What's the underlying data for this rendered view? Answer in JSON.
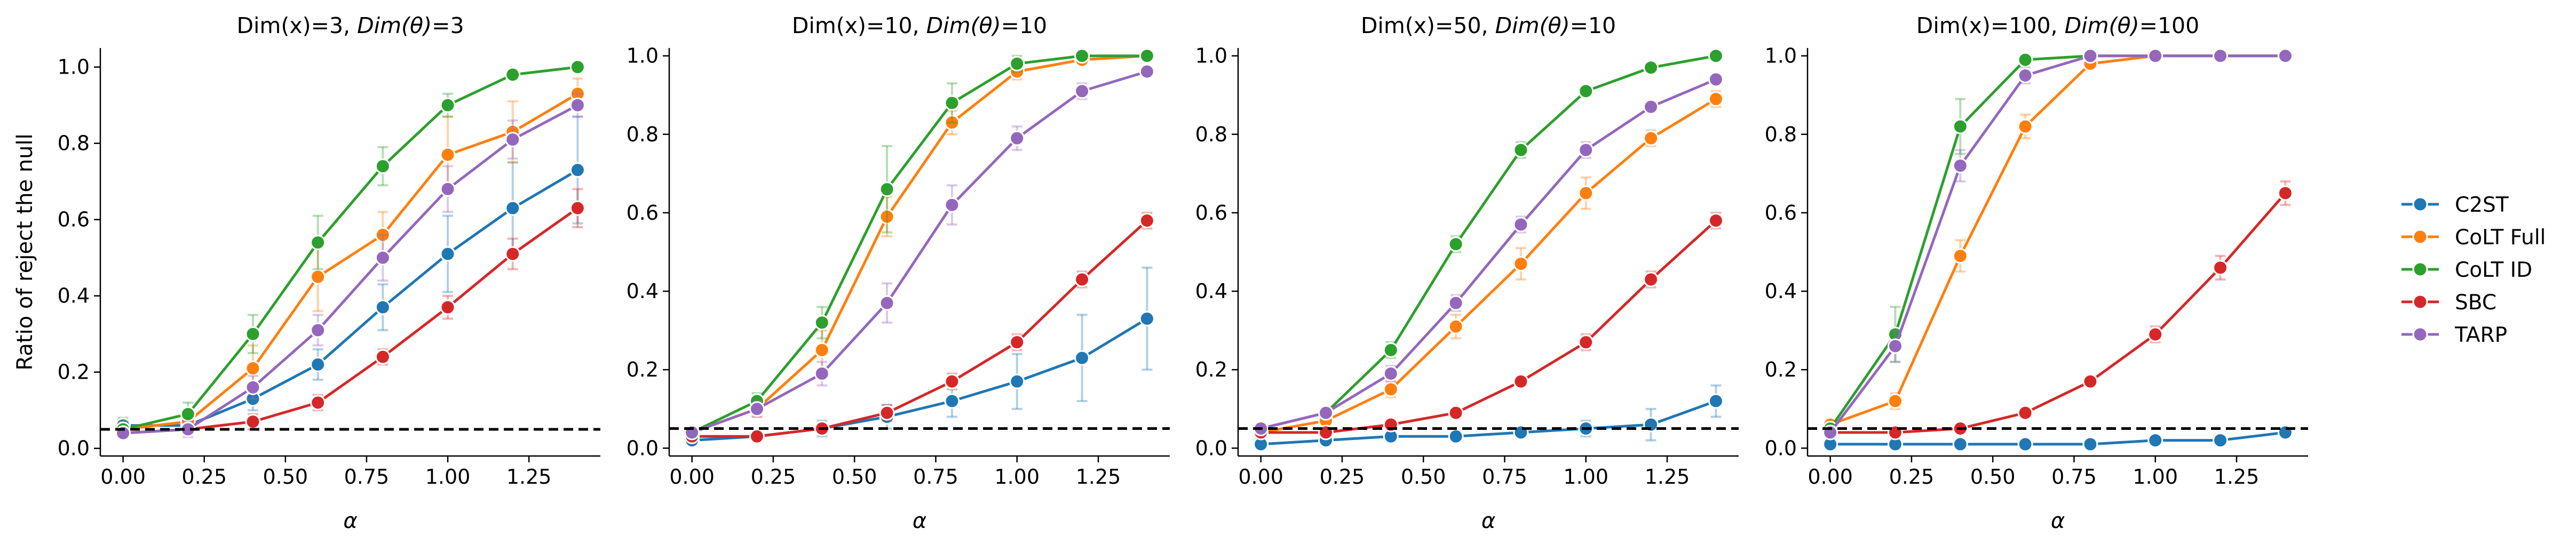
{
  "chart_data": {
    "type": "line",
    "shared": {
      "ylabel": "Ratio of reject the null",
      "xlabel": "α",
      "x": [
        0.0,
        0.2,
        0.4,
        0.6,
        0.8,
        1.0,
        1.2,
        1.4
      ],
      "xticks": [
        0.0,
        0.25,
        0.5,
        0.75,
        1.0,
        1.25
      ],
      "xtick_labels": [
        "0.00",
        "0.25",
        "0.50",
        "0.75",
        "1.00",
        "1.25"
      ],
      "yticks": [
        0.0,
        0.2,
        0.4,
        0.6,
        0.8,
        1.0
      ],
      "ytick_labels": [
        "0.0",
        "0.2",
        "0.4",
        "0.6",
        "0.8",
        "1.0"
      ],
      "null_level": 0.05,
      "legend_position": "right"
    },
    "legend": [
      {
        "name": "C2ST",
        "color": "#1f77b4"
      },
      {
        "name": "CoLT Full",
        "color": "#ff7f0e"
      },
      {
        "name": "CoLT ID",
        "color": "#2ca02c"
      },
      {
        "name": "SBC",
        "color": "#d62728"
      },
      {
        "name": "TARP",
        "color": "#9467bd"
      }
    ],
    "panels": [
      {
        "title_plain": "Dim(x)=3, ",
        "title_italic": "Dim(θ)",
        "title_tail": "=3",
        "xlim": [
          -0.07,
          1.47
        ],
        "ylim": [
          -0.02,
          1.05
        ],
        "series": [
          {
            "name": "C2ST",
            "color": "#1f77b4",
            "values": [
              0.06,
              0.06,
              0.13,
              0.22,
              0.37,
              0.51,
              0.63,
              0.73
            ],
            "err": [
              0.02,
              0.02,
              0.03,
              0.04,
              0.06,
              0.1,
              0.12,
              0.14
            ]
          },
          {
            "name": "CoLT Full",
            "color": "#ff7f0e",
            "values": [
              0.05,
              0.07,
              0.21,
              0.45,
              0.56,
              0.77,
              0.83,
              0.93
            ],
            "err": [
              0.02,
              0.02,
              0.06,
              0.09,
              0.06,
              0.1,
              0.08,
              0.04
            ]
          },
          {
            "name": "CoLT ID",
            "color": "#2ca02c",
            "values": [
              0.05,
              0.09,
              0.3,
              0.54,
              0.74,
              0.9,
              0.98,
              1.0
            ],
            "err": [
              0.02,
              0.03,
              0.05,
              0.07,
              0.05,
              0.03,
              0.01,
              0.0
            ]
          },
          {
            "name": "SBC",
            "color": "#d62728",
            "values": [
              0.04,
              0.05,
              0.07,
              0.12,
              0.24,
              0.37,
              0.51,
              0.63
            ],
            "err": [
              0.01,
              0.01,
              0.02,
              0.02,
              0.02,
              0.03,
              0.04,
              0.05
            ]
          },
          {
            "name": "TARP",
            "color": "#9467bd",
            "values": [
              0.04,
              0.05,
              0.16,
              0.31,
              0.5,
              0.68,
              0.81,
              0.9
            ],
            "err": [
              0.01,
              0.02,
              0.03,
              0.04,
              0.06,
              0.06,
              0.05,
              0.03
            ]
          }
        ]
      },
      {
        "title_plain": "Dim(x)=10, ",
        "title_italic": "Dim(θ)",
        "title_tail": "=10",
        "xlim": [
          -0.07,
          1.47
        ],
        "ylim": [
          -0.02,
          1.02
        ],
        "series": [
          {
            "name": "C2ST",
            "color": "#1f77b4",
            "values": [
              0.02,
              0.03,
              0.05,
              0.08,
              0.12,
              0.17,
              0.23,
              0.33
            ],
            "err": [
              0.01,
              0.01,
              0.02,
              0.03,
              0.04,
              0.07,
              0.11,
              0.13
            ]
          },
          {
            "name": "CoLT Full",
            "color": "#ff7f0e",
            "values": [
              0.04,
              0.1,
              0.25,
              0.59,
              0.83,
              0.96,
              0.99,
              1.0
            ],
            "err": [
              0.01,
              0.02,
              0.05,
              0.05,
              0.03,
              0.02,
              0.01,
              0.0
            ]
          },
          {
            "name": "CoLT ID",
            "color": "#2ca02c",
            "values": [
              0.04,
              0.12,
              0.32,
              0.66,
              0.88,
              0.98,
              1.0,
              1.0
            ],
            "err": [
              0.01,
              0.02,
              0.04,
              0.11,
              0.05,
              0.02,
              0.0,
              0.0
            ]
          },
          {
            "name": "SBC",
            "color": "#d62728",
            "values": [
              0.03,
              0.03,
              0.05,
              0.09,
              0.17,
              0.27,
              0.43,
              0.58
            ],
            "err": [
              0.01,
              0.01,
              0.01,
              0.02,
              0.02,
              0.02,
              0.02,
              0.02
            ]
          },
          {
            "name": "TARP",
            "color": "#9467bd",
            "values": [
              0.04,
              0.1,
              0.19,
              0.37,
              0.62,
              0.79,
              0.91,
              0.96
            ],
            "err": [
              0.01,
              0.02,
              0.03,
              0.05,
              0.05,
              0.03,
              0.02,
              0.01
            ]
          }
        ]
      },
      {
        "title_plain": "Dim(x)=50, ",
        "title_italic": "Dim(θ)",
        "title_tail": "=10",
        "xlim": [
          -0.07,
          1.47
        ],
        "ylim": [
          -0.02,
          1.02
        ],
        "series": [
          {
            "name": "C2ST",
            "color": "#1f77b4",
            "values": [
              0.01,
              0.02,
              0.03,
              0.03,
              0.04,
              0.05,
              0.06,
              0.12
            ],
            "err": [
              0.01,
              0.01,
              0.01,
              0.01,
              0.01,
              0.02,
              0.04,
              0.04
            ]
          },
          {
            "name": "CoLT Full",
            "color": "#ff7f0e",
            "values": [
              0.04,
              0.07,
              0.15,
              0.31,
              0.47,
              0.65,
              0.79,
              0.89
            ],
            "err": [
              0.01,
              0.01,
              0.02,
              0.03,
              0.04,
              0.04,
              0.02,
              0.02
            ]
          },
          {
            "name": "CoLT ID",
            "color": "#2ca02c",
            "values": [
              0.05,
              0.09,
              0.25,
              0.52,
              0.76,
              0.91,
              0.97,
              1.0
            ],
            "err": [
              0.01,
              0.01,
              0.02,
              0.02,
              0.02,
              0.01,
              0.01,
              0.0
            ]
          },
          {
            "name": "SBC",
            "color": "#d62728",
            "values": [
              0.04,
              0.04,
              0.06,
              0.09,
              0.17,
              0.27,
              0.43,
              0.58
            ],
            "err": [
              0.01,
              0.01,
              0.01,
              0.01,
              0.01,
              0.02,
              0.02,
              0.02
            ]
          },
          {
            "name": "TARP",
            "color": "#9467bd",
            "values": [
              0.05,
              0.09,
              0.19,
              0.37,
              0.57,
              0.76,
              0.87,
              0.94
            ],
            "err": [
              0.01,
              0.01,
              0.02,
              0.02,
              0.02,
              0.02,
              0.01,
              0.01
            ]
          }
        ]
      },
      {
        "title_plain": "Dim(x)=100, ",
        "title_italic": "Dim(θ)",
        "title_tail": "=100",
        "xlim": [
          -0.07,
          1.47
        ],
        "ylim": [
          -0.02,
          1.02
        ],
        "series": [
          {
            "name": "C2ST",
            "color": "#1f77b4",
            "values": [
              0.01,
              0.01,
              0.01,
              0.01,
              0.01,
              0.02,
              0.02,
              0.04
            ],
            "err": [
              0.0,
              0.0,
              0.0,
              0.0,
              0.0,
              0.01,
              0.01,
              0.01
            ]
          },
          {
            "name": "CoLT Full",
            "color": "#ff7f0e",
            "values": [
              0.06,
              0.12,
              0.49,
              0.82,
              0.98,
              1.0,
              1.0,
              1.0
            ],
            "err": [
              0.01,
              0.02,
              0.04,
              0.03,
              0.01,
              0.0,
              0.0,
              0.0
            ]
          },
          {
            "name": "CoLT ID",
            "color": "#2ca02c",
            "values": [
              0.05,
              0.29,
              0.82,
              0.99,
              1.0,
              1.0,
              1.0,
              1.0
            ],
            "err": [
              0.01,
              0.07,
              0.07,
              0.01,
              0.0,
              0.0,
              0.0,
              0.0
            ]
          },
          {
            "name": "SBC",
            "color": "#d62728",
            "values": [
              0.04,
              0.04,
              0.05,
              0.09,
              0.17,
              0.29,
              0.46,
              0.65
            ],
            "err": [
              0.01,
              0.01,
              0.01,
              0.01,
              0.01,
              0.02,
              0.03,
              0.03
            ]
          },
          {
            "name": "TARP",
            "color": "#9467bd",
            "values": [
              0.04,
              0.26,
              0.72,
              0.95,
              1.0,
              1.0,
              1.0,
              1.0
            ],
            "err": [
              0.01,
              0.04,
              0.04,
              0.02,
              0.0,
              0.0,
              0.0,
              0.0
            ]
          }
        ]
      }
    ]
  }
}
